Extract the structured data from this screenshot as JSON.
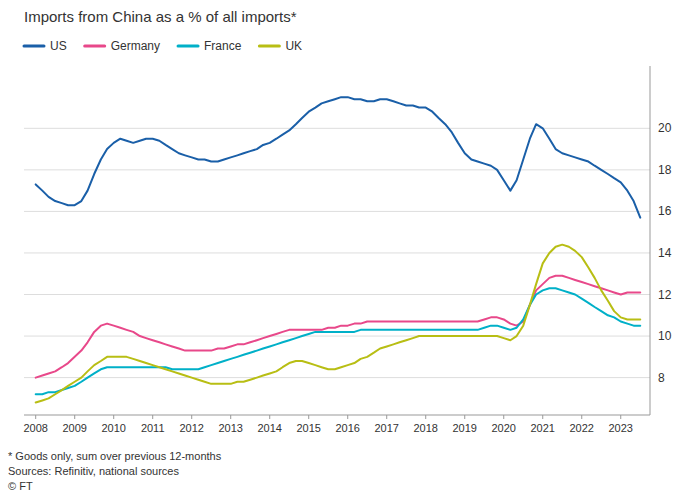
{
  "chart_data": {
    "type": "line",
    "title": "Imports from China as a % of all imports*",
    "annotations": [
      "* Goods only, sum over previous 12-months",
      "Sources: Refinitiv, national sources",
      "© FT"
    ],
    "x": [
      2008.0,
      2008.17,
      2008.33,
      2008.5,
      2008.67,
      2008.83,
      2009.0,
      2009.17,
      2009.33,
      2009.5,
      2009.67,
      2009.83,
      2010.0,
      2010.17,
      2010.33,
      2010.5,
      2010.67,
      2010.83,
      2011.0,
      2011.17,
      2011.33,
      2011.5,
      2011.67,
      2011.83,
      2012.0,
      2012.17,
      2012.33,
      2012.5,
      2012.67,
      2012.83,
      2013.0,
      2013.17,
      2013.33,
      2013.5,
      2013.67,
      2013.83,
      2014.0,
      2014.17,
      2014.33,
      2014.5,
      2014.67,
      2014.83,
      2015.0,
      2015.17,
      2015.33,
      2015.5,
      2015.67,
      2015.83,
      2016.0,
      2016.17,
      2016.33,
      2016.5,
      2016.67,
      2016.83,
      2017.0,
      2017.17,
      2017.33,
      2017.5,
      2017.67,
      2017.83,
      2018.0,
      2018.17,
      2018.33,
      2018.5,
      2018.67,
      2018.83,
      2019.0,
      2019.17,
      2019.33,
      2019.5,
      2019.67,
      2019.83,
      2020.0,
      2020.17,
      2020.33,
      2020.5,
      2020.67,
      2020.83,
      2021.0,
      2021.17,
      2021.33,
      2021.5,
      2021.67,
      2021.83,
      2022.0,
      2022.17,
      2022.33,
      2022.5,
      2022.67,
      2022.83,
      2023.0,
      2023.17,
      2023.33,
      2023.5
    ],
    "series": [
      {
        "name": "US",
        "color": "#1a5fa8",
        "values": [
          17.3,
          17.0,
          16.7,
          16.5,
          16.4,
          16.3,
          16.3,
          16.5,
          17.0,
          17.8,
          18.5,
          19.0,
          19.3,
          19.5,
          19.4,
          19.3,
          19.4,
          19.5,
          19.5,
          19.4,
          19.2,
          19.0,
          18.8,
          18.7,
          18.6,
          18.5,
          18.5,
          18.4,
          18.4,
          18.5,
          18.6,
          18.7,
          18.8,
          18.9,
          19.0,
          19.2,
          19.3,
          19.5,
          19.7,
          19.9,
          20.2,
          20.5,
          20.8,
          21.0,
          21.2,
          21.3,
          21.4,
          21.5,
          21.5,
          21.4,
          21.4,
          21.3,
          21.3,
          21.4,
          21.4,
          21.3,
          21.2,
          21.1,
          21.1,
          21.0,
          21.0,
          20.8,
          20.5,
          20.2,
          19.8,
          19.3,
          18.8,
          18.5,
          18.4,
          18.3,
          18.2,
          18.0,
          17.5,
          17.0,
          17.5,
          18.5,
          19.5,
          20.2,
          20.0,
          19.5,
          19.0,
          18.8,
          18.7,
          18.6,
          18.5,
          18.4,
          18.2,
          18.0,
          17.8,
          17.6,
          17.4,
          17.0,
          16.5,
          15.7
        ]
      },
      {
        "name": "Germany",
        "color": "#e8488a",
        "values": [
          8.0,
          8.1,
          8.2,
          8.3,
          8.5,
          8.7,
          9.0,
          9.3,
          9.7,
          10.2,
          10.5,
          10.6,
          10.5,
          10.4,
          10.3,
          10.2,
          10.0,
          9.9,
          9.8,
          9.7,
          9.6,
          9.5,
          9.4,
          9.3,
          9.3,
          9.3,
          9.3,
          9.3,
          9.4,
          9.4,
          9.5,
          9.6,
          9.6,
          9.7,
          9.8,
          9.9,
          10.0,
          10.1,
          10.2,
          10.3,
          10.3,
          10.3,
          10.3,
          10.3,
          10.3,
          10.4,
          10.4,
          10.5,
          10.5,
          10.6,
          10.6,
          10.7,
          10.7,
          10.7,
          10.7,
          10.7,
          10.7,
          10.7,
          10.7,
          10.7,
          10.7,
          10.7,
          10.7,
          10.7,
          10.7,
          10.7,
          10.7,
          10.7,
          10.7,
          10.8,
          10.9,
          10.9,
          10.8,
          10.6,
          10.5,
          10.7,
          11.5,
          12.2,
          12.5,
          12.8,
          12.9,
          12.9,
          12.8,
          12.7,
          12.6,
          12.5,
          12.4,
          12.3,
          12.2,
          12.1,
          12.0,
          12.1,
          12.1,
          12.1
        ]
      },
      {
        "name": "France",
        "color": "#00b0c8",
        "values": [
          7.2,
          7.2,
          7.3,
          7.3,
          7.4,
          7.5,
          7.6,
          7.8,
          8.0,
          8.2,
          8.4,
          8.5,
          8.5,
          8.5,
          8.5,
          8.5,
          8.5,
          8.5,
          8.5,
          8.5,
          8.5,
          8.4,
          8.4,
          8.4,
          8.4,
          8.4,
          8.5,
          8.6,
          8.7,
          8.8,
          8.9,
          9.0,
          9.1,
          9.2,
          9.3,
          9.4,
          9.5,
          9.6,
          9.7,
          9.8,
          9.9,
          10.0,
          10.1,
          10.2,
          10.2,
          10.2,
          10.2,
          10.2,
          10.2,
          10.2,
          10.3,
          10.3,
          10.3,
          10.3,
          10.3,
          10.3,
          10.3,
          10.3,
          10.3,
          10.3,
          10.3,
          10.3,
          10.3,
          10.3,
          10.3,
          10.3,
          10.3,
          10.3,
          10.3,
          10.4,
          10.5,
          10.5,
          10.4,
          10.3,
          10.4,
          10.8,
          11.5,
          12.0,
          12.2,
          12.3,
          12.3,
          12.2,
          12.1,
          12.0,
          11.8,
          11.6,
          11.4,
          11.2,
          11.0,
          10.9,
          10.7,
          10.6,
          10.5,
          10.5
        ]
      },
      {
        "name": "UK",
        "color": "#b8be14",
        "values": [
          6.8,
          6.9,
          7.0,
          7.2,
          7.4,
          7.6,
          7.8,
          8.0,
          8.3,
          8.6,
          8.8,
          9.0,
          9.0,
          9.0,
          9.0,
          8.9,
          8.8,
          8.7,
          8.6,
          8.5,
          8.4,
          8.3,
          8.2,
          8.1,
          8.0,
          7.9,
          7.8,
          7.7,
          7.7,
          7.7,
          7.7,
          7.8,
          7.8,
          7.9,
          8.0,
          8.1,
          8.2,
          8.3,
          8.5,
          8.7,
          8.8,
          8.8,
          8.7,
          8.6,
          8.5,
          8.4,
          8.4,
          8.5,
          8.6,
          8.7,
          8.9,
          9.0,
          9.2,
          9.4,
          9.5,
          9.6,
          9.7,
          9.8,
          9.9,
          10.0,
          10.0,
          10.0,
          10.0,
          10.0,
          10.0,
          10.0,
          10.0,
          10.0,
          10.0,
          10.0,
          10.0,
          10.0,
          9.9,
          9.8,
          10.0,
          10.5,
          11.5,
          12.5,
          13.5,
          14.0,
          14.3,
          14.4,
          14.3,
          14.1,
          13.8,
          13.3,
          12.8,
          12.2,
          11.7,
          11.2,
          10.9,
          10.8,
          10.8,
          10.8
        ]
      }
    ],
    "xlim": [
      2007.7,
      2023.75
    ],
    "xticks": [
      2008,
      2009,
      2010,
      2011,
      2012,
      2013,
      2014,
      2015,
      2016,
      2017,
      2018,
      2019,
      2020,
      2021,
      2022,
      2023
    ],
    "ylim": [
      6.2,
      23.0
    ],
    "yticks": [
      8,
      10,
      12,
      14,
      16,
      18,
      20
    ],
    "grid": true,
    "legend": "upper left"
  }
}
